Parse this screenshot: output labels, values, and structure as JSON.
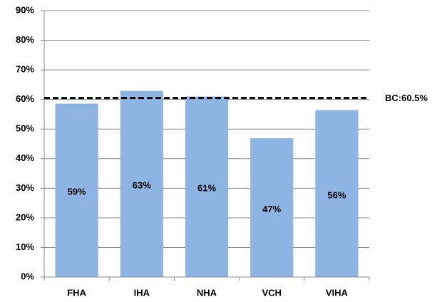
{
  "chart_data": {
    "type": "bar",
    "categories": [
      "FHA",
      "IHA",
      "NHA",
      "VCH",
      "VIHA"
    ],
    "values": [
      58.6,
      62.9,
      61.0,
      46.9,
      56.4
    ],
    "value_labels": [
      "59%",
      "63%",
      "61%",
      "47%",
      "56%"
    ],
    "color": "#8eb4e3",
    "ylim": [
      0,
      90
    ],
    "yticks": [
      {
        "value": 0,
        "label": "0%"
      },
      {
        "value": 10,
        "label": "10%"
      },
      {
        "value": 20,
        "label": "20%"
      },
      {
        "value": 30,
        "label": "30%"
      },
      {
        "value": 40,
        "label": "40%"
      },
      {
        "value": 50,
        "label": "50%"
      },
      {
        "value": 60,
        "label": "60%"
      },
      {
        "value": 70,
        "label": "70%"
      },
      {
        "value": 80,
        "label": "80%"
      },
      {
        "value": 90,
        "label": "90%"
      }
    ],
    "grid": true,
    "reference_line": {
      "value": 60.5,
      "label": "BC:60.5%",
      "color": "#000000"
    }
  }
}
